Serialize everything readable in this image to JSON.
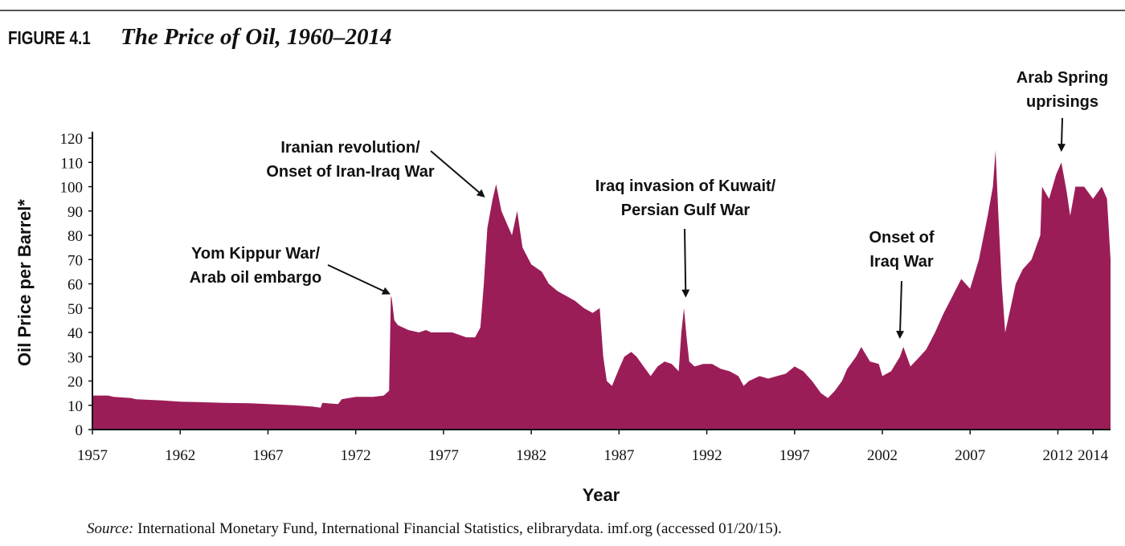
{
  "figure": {
    "label": "FIGURE 4.1",
    "title": "The Price of Oil, 1960–2014"
  },
  "source": {
    "prefix": "Source:",
    "text": "International Monetary Fund, International Financial Statistics, elibrarydata. imf.org (accessed 01/20/15)."
  },
  "colors": {
    "fill": "#9b1d58",
    "axis": "#111111"
  },
  "chart_data": {
    "type": "area",
    "xlabel": "Year",
    "ylabel": "Oil Price per Barrel*",
    "xlim": [
      1957,
      2015
    ],
    "ylim": [
      0,
      120
    ],
    "x_ticks": [
      1957,
      1962,
      1967,
      1972,
      1977,
      1982,
      1987,
      1992,
      1997,
      2002,
      2007,
      2012,
      2014
    ],
    "y_ticks": [
      0,
      10,
      20,
      30,
      40,
      50,
      60,
      70,
      80,
      90,
      100,
      110,
      120
    ],
    "grid": false,
    "series": [
      {
        "x": [
          1957.0,
          1957.9,
          1958.2,
          1959.2,
          1959.5,
          1961.0,
          1962.0,
          1963.0,
          1964.5,
          1966.0,
          1967.5,
          1968.5,
          1969.5,
          1970.0,
          1970.1,
          1971.0,
          1971.2,
          1972.0,
          1973.0,
          1973.6,
          1973.9,
          1974.0,
          1974.05,
          1974.2,
          1974.4,
          1975.0,
          1975.6,
          1976.0,
          1976.3,
          1977.0,
          1977.5,
          1978.3,
          1978.8,
          1979.1,
          1979.3,
          1979.5,
          1979.8,
          1980.0,
          1980.3,
          1980.6,
          1980.9,
          1981.2,
          1981.5,
          1982.0,
          1982.6,
          1983.0,
          1983.5,
          1984.0,
          1984.5,
          1985.0,
          1985.5,
          1985.9,
          1986.1,
          1986.3,
          1986.6,
          1987.0,
          1987.3,
          1987.7,
          1988.0,
          1988.5,
          1988.8,
          1989.2,
          1989.6,
          1990.0,
          1990.4,
          1990.55,
          1990.7,
          1990.85,
          1991.0,
          1991.3,
          1991.8,
          1992.3,
          1992.8,
          1993.3,
          1993.8,
          1994.1,
          1994.4,
          1995.0,
          1995.5,
          1996.0,
          1996.5,
          1997.0,
          1997.5,
          1998.0,
          1998.5,
          1998.9,
          1999.3,
          1999.7,
          2000.0,
          2000.5,
          2000.8,
          2001.3,
          2001.8,
          2002.0,
          2002.5,
          2003.0,
          2003.2,
          2003.6,
          2004.0,
          2004.5,
          2005.0,
          2005.5,
          2006.0,
          2006.5,
          2007.0,
          2007.5,
          2008.0,
          2008.3,
          2008.45,
          2008.6,
          2008.8,
          2009.0,
          2009.3,
          2009.6,
          2010.0,
          2010.5,
          2011.0,
          2011.1,
          2011.5,
          2011.9,
          2012.2,
          2012.5,
          2012.7,
          2013.0,
          2013.5,
          2014.0,
          2014.5,
          2014.8,
          2015.0
        ],
        "values": [
          14,
          14,
          13.5,
          13,
          12.5,
          12,
          11.5,
          11.3,
          11,
          10.8,
          10.3,
          10,
          9.5,
          9,
          11,
          10.5,
          12.5,
          13.5,
          13.5,
          14,
          16,
          55,
          54,
          45,
          43,
          41,
          40,
          41,
          40,
          40,
          40,
          38,
          38,
          42,
          60,
          83,
          95,
          101,
          90,
          85,
          80,
          90,
          75,
          68,
          65,
          60,
          57,
          55,
          53,
          50,
          48,
          50,
          30,
          20,
          18,
          25,
          30,
          32,
          30,
          25,
          22,
          26,
          28,
          27,
          24,
          40,
          50,
          38,
          28,
          26,
          27,
          27,
          25,
          24,
          22,
          18,
          20,
          22,
          21,
          22,
          23,
          26,
          24,
          20,
          15,
          13,
          16,
          20,
          25,
          30,
          34,
          28,
          27,
          22,
          24,
          30,
          34,
          26,
          29,
          33,
          40,
          48,
          55,
          62,
          58,
          70,
          88,
          100,
          115,
          90,
          60,
          40,
          50,
          60,
          66,
          70,
          80,
          100,
          95,
          105,
          110,
          98,
          88,
          100,
          100,
          95,
          100,
          95,
          70
        ]
      }
    ],
    "annotations": [
      {
        "lines": [
          "Yom Kippur War/",
          "Arab oil embargo"
        ],
        "target_x": 1973.9,
        "target_y": 56
      },
      {
        "lines": [
          "Iranian revolution/",
          "Onset of Iran-Iraq War"
        ],
        "target_x": 1979.3,
        "target_y": 96
      },
      {
        "lines": [
          "Iraq invasion of Kuwait/",
          "Persian Gulf War"
        ],
        "target_x": 1990.8,
        "target_y": 55
      },
      {
        "lines": [
          "Onset of",
          "Iraq War"
        ],
        "target_x": 2003.0,
        "target_y": 38
      },
      {
        "lines": [
          "Arab Spring",
          "uprisings"
        ],
        "target_x": 2012.2,
        "target_y": 115
      }
    ]
  }
}
